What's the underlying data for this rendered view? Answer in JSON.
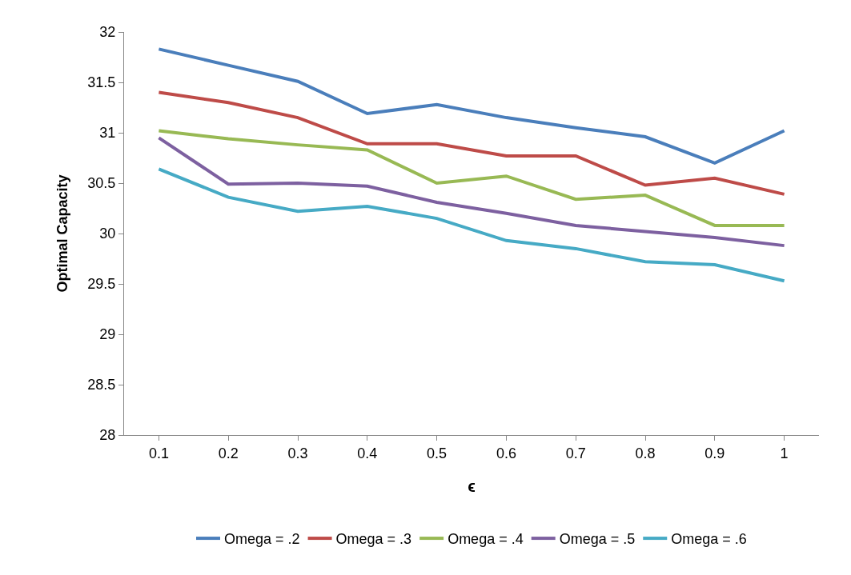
{
  "chart_data": {
    "type": "line",
    "xlabel": "ϵ",
    "ylabel": "Optimal Capacity",
    "categories": [
      "0.1",
      "0.2",
      "0.3",
      "0.4",
      "0.5",
      "0.6",
      "0.7",
      "0.8",
      "0.9",
      "1"
    ],
    "series": [
      {
        "name": "Omega = .2",
        "color": "#4a7ebb",
        "values": [
          31.83,
          31.67,
          31.51,
          31.19,
          31.28,
          31.15,
          31.05,
          30.96,
          30.7,
          31.02
        ]
      },
      {
        "name": "Omega = .3",
        "color": "#be4b48",
        "values": [
          31.4,
          31.3,
          31.15,
          30.89,
          30.89,
          30.77,
          30.77,
          30.48,
          30.55,
          30.39
        ]
      },
      {
        "name": "Omega = .4",
        "color": "#98b954",
        "values": [
          31.02,
          30.94,
          30.88,
          30.83,
          30.5,
          30.57,
          30.34,
          30.38,
          30.08,
          30.08
        ]
      },
      {
        "name": "Omega = .5",
        "color": "#7d60a0",
        "values": [
          30.95,
          30.49,
          30.5,
          30.47,
          30.31,
          30.2,
          30.08,
          30.02,
          29.96,
          29.88
        ]
      },
      {
        "name": "Omega = .6",
        "color": "#46aac5",
        "values": [
          30.64,
          30.36,
          30.22,
          30.27,
          30.15,
          29.93,
          29.85,
          29.72,
          29.69,
          29.53
        ]
      }
    ],
    "ylim": [
      28,
      32
    ],
    "yticks": [
      28,
      28.5,
      29,
      29.5,
      30,
      30.5,
      31,
      31.5,
      32
    ],
    "grid": false,
    "legend": "bottom",
    "marker": "none",
    "line_style": "solid"
  }
}
